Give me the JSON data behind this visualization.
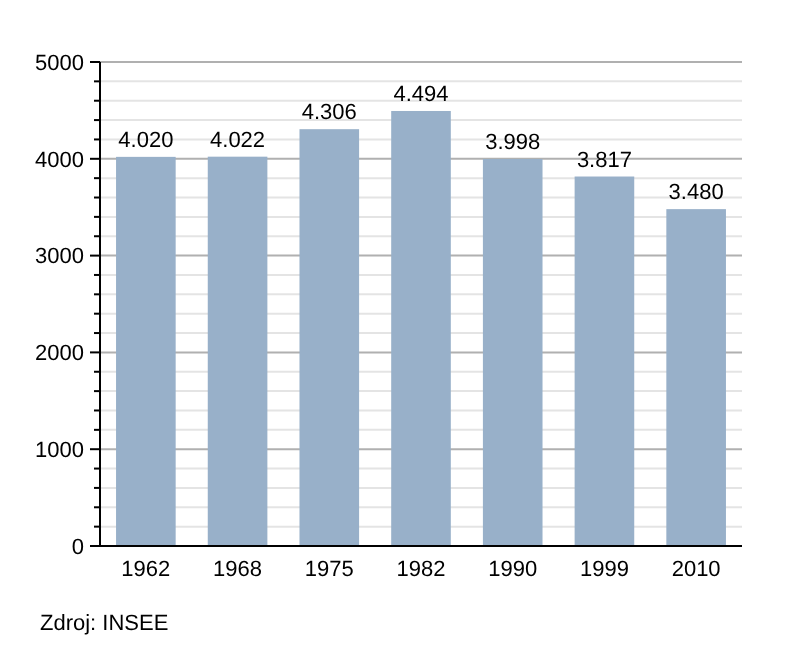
{
  "chart_data": {
    "type": "bar",
    "categories": [
      "1962",
      "1968",
      "1975",
      "1982",
      "1990",
      "1999",
      "2010"
    ],
    "values": [
      4020,
      4022,
      4306,
      4494,
      3998,
      3817,
      3480
    ],
    "value_labels": [
      "4.020",
      "4.022",
      "4.306",
      "4.494",
      "3.998",
      "3.817",
      "3.480"
    ],
    "color": "#98b0c9",
    "ylim": [
      0,
      5000
    ],
    "yticks": [
      0,
      {
        "value": 200,
        "label": null
      },
      {
        "value": 400,
        "label": null
      },
      {
        "value": 600,
        "label": null
      },
      {
        "value": 800,
        "label": null
      },
      1000,
      {
        "value": 1200,
        "label": null
      },
      {
        "value": 1400,
        "label": null
      },
      {
        "value": 1600,
        "label": null
      },
      {
        "value": 1800,
        "label": null
      },
      2000,
      {
        "value": 2200,
        "label": null
      },
      {
        "value": 2400,
        "label": null
      },
      {
        "value": 2600,
        "label": null
      },
      {
        "value": 2800,
        "label": null
      },
      3000,
      {
        "value": 3200,
        "label": null
      },
      {
        "value": 3400,
        "label": null
      },
      {
        "value": 3600,
        "label": null
      },
      {
        "value": 3800,
        "label": null
      },
      4000,
      {
        "value": 4200,
        "label": null
      },
      {
        "value": 4400,
        "label": null
      },
      {
        "value": 4600,
        "label": null
      },
      {
        "value": 4800,
        "label": null
      },
      5000
    ],
    "grid": "y",
    "annotations": [
      "Zdroj: INSEE"
    ]
  }
}
